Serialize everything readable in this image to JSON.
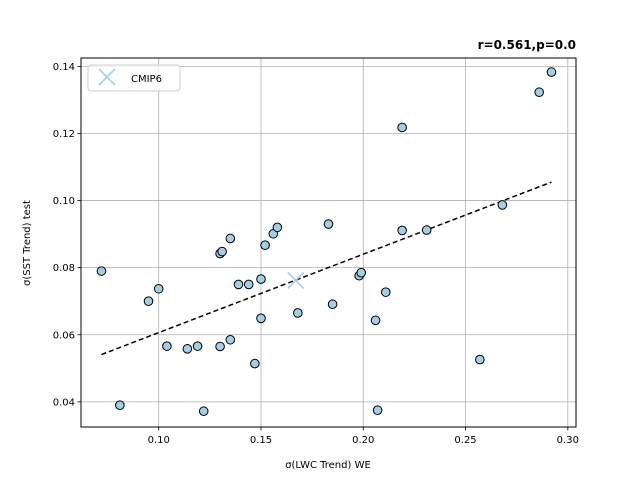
{
  "chart_data": {
    "type": "scatter",
    "title_right": "r=0.561,p=0.0",
    "xlabel": "σ(LWC Trend) WE",
    "ylabel": "σ(SST Trend) test",
    "xlim": [
      0.062,
      0.304
    ],
    "ylim": [
      0.0325,
      0.1425
    ],
    "xticks": [
      0.1,
      0.15,
      0.2,
      0.25,
      0.3
    ],
    "xtick_labels": [
      "0.10",
      "0.15",
      "0.20",
      "0.25",
      "0.30"
    ],
    "yticks": [
      0.04,
      0.06,
      0.08,
      0.1,
      0.12,
      0.14
    ],
    "ytick_labels": [
      "0.04",
      "0.06",
      "0.08",
      "0.10",
      "0.12",
      "0.14"
    ],
    "grid": true,
    "legend": {
      "placement": "top-left",
      "entries": [
        "CMIP6"
      ]
    },
    "series": [
      {
        "name": "CMIP6",
        "marker_color": "#a6cee3",
        "points": [
          [
            0.072,
            0.079
          ],
          [
            0.081,
            0.039
          ],
          [
            0.095,
            0.07
          ],
          [
            0.1,
            0.0737
          ],
          [
            0.104,
            0.0566
          ],
          [
            0.114,
            0.0558
          ],
          [
            0.119,
            0.0566
          ],
          [
            0.122,
            0.0372
          ],
          [
            0.13,
            0.0842
          ],
          [
            0.131,
            0.0848
          ],
          [
            0.13,
            0.0565
          ],
          [
            0.135,
            0.0887
          ],
          [
            0.135,
            0.0585
          ],
          [
            0.139,
            0.075
          ],
          [
            0.144,
            0.075
          ],
          [
            0.147,
            0.0514
          ],
          [
            0.15,
            0.0766
          ],
          [
            0.15,
            0.0649
          ],
          [
            0.152,
            0.0867
          ],
          [
            0.156,
            0.0901
          ],
          [
            0.158,
            0.092
          ],
          [
            0.168,
            0.0665
          ],
          [
            0.183,
            0.093
          ],
          [
            0.185,
            0.0691
          ],
          [
            0.198,
            0.0776
          ],
          [
            0.199,
            0.0785
          ],
          [
            0.206,
            0.0643
          ],
          [
            0.207,
            0.0375
          ],
          [
            0.211,
            0.0727
          ],
          [
            0.219,
            0.1218
          ],
          [
            0.219,
            0.0911
          ],
          [
            0.231,
            0.0912
          ],
          [
            0.257,
            0.0526
          ],
          [
            0.268,
            0.0987
          ],
          [
            0.286,
            0.1323
          ],
          [
            0.292,
            0.1383
          ]
        ]
      }
    ],
    "mean_marker": {
      "x": 0.167,
      "y": 0.0762,
      "color": "#a6cee3"
    },
    "fit_line": {
      "x": [
        0.072,
        0.292
      ],
      "y": [
        0.0541,
        0.1055
      ],
      "style": "dashed",
      "color": "#000000"
    }
  }
}
